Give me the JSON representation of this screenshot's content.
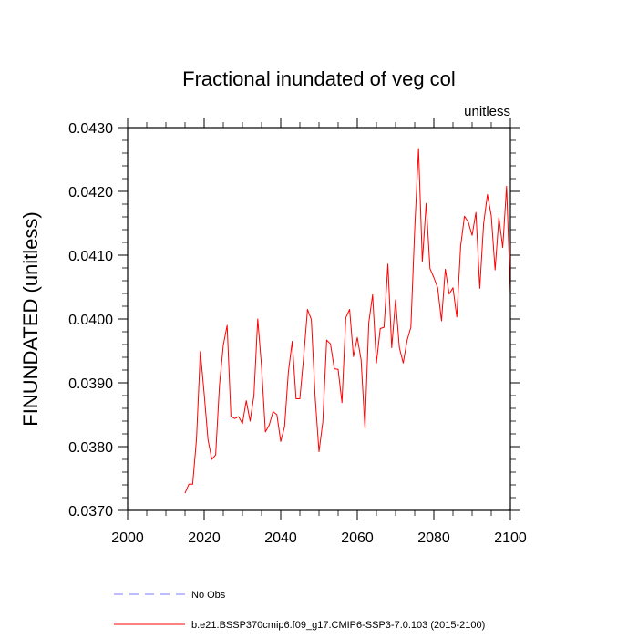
{
  "chart_data": {
    "type": "line",
    "title": "Fractional inundated of veg col",
    "units_label": "unitless",
    "ylabel": "FINUNDATED  (unitless)",
    "xlabel": "",
    "xlim": [
      2000,
      2100
    ],
    "ylim": [
      0.037,
      0.043
    ],
    "x_ticks": [
      2000,
      2020,
      2040,
      2060,
      2080,
      2100
    ],
    "x_tick_labels": [
      "2000",
      "2020",
      "2040",
      "2060",
      "2080",
      "2100"
    ],
    "y_ticks": [
      0.037,
      0.038,
      0.039,
      0.04,
      0.041,
      0.042,
      0.043
    ],
    "y_tick_labels": [
      "0.0370",
      "0.0380",
      "0.0390",
      "0.0400",
      "0.0410",
      "0.0420",
      "0.0430"
    ],
    "series": [
      {
        "name": "b.e21.BSSP370cmip6.f09_g17.CMIP6-SSP3-7.0.103 (2015-2100)",
        "color": "#ff0000",
        "dash": "solid",
        "x": [
          2015,
          2016,
          2017,
          2018,
          2019,
          2020,
          2021,
          2022,
          2023,
          2024,
          2025,
          2026,
          2027,
          2028,
          2029,
          2030,
          2031,
          2032,
          2033,
          2034,
          2035,
          2036,
          2037,
          2038,
          2039,
          2040,
          2041,
          2042,
          2043,
          2044,
          2045,
          2046,
          2047,
          2048,
          2049,
          2050,
          2051,
          2052,
          2053,
          2054,
          2055,
          2056,
          2057,
          2058,
          2059,
          2060,
          2061,
          2062,
          2063,
          2064,
          2065,
          2066,
          2067,
          2068,
          2069,
          2070,
          2071,
          2072,
          2073,
          2074,
          2075,
          2076,
          2077,
          2078,
          2079,
          2080,
          2081,
          2082,
          2083,
          2084,
          2085,
          2086,
          2087,
          2088,
          2089,
          2090,
          2091,
          2092,
          2093,
          2094,
          2095,
          2096,
          2097,
          2098,
          2099,
          2100
        ],
        "values": [
          0.03727,
          0.03741,
          0.03741,
          0.03812,
          0.03949,
          0.03883,
          0.03811,
          0.0378,
          0.03787,
          0.03896,
          0.03959,
          0.0399,
          0.03847,
          0.03844,
          0.03847,
          0.03836,
          0.03872,
          0.0384,
          0.0388,
          0.04,
          0.03925,
          0.03823,
          0.03834,
          0.03855,
          0.0385,
          0.03808,
          0.03831,
          0.03917,
          0.03965,
          0.03875,
          0.03875,
          0.03941,
          0.04015,
          0.03999,
          0.03877,
          0.03792,
          0.03839,
          0.03967,
          0.03961,
          0.03922,
          0.03921,
          0.03869,
          0.04002,
          0.04015,
          0.03941,
          0.03971,
          0.03936,
          0.03829,
          0.03994,
          0.04038,
          0.03931,
          0.03985,
          0.03987,
          0.04086,
          0.03955,
          0.0403,
          0.03955,
          0.03931,
          0.03966,
          0.03987,
          0.0414,
          0.04267,
          0.0409,
          0.04181,
          0.04079,
          0.04065,
          0.04049,
          0.03997,
          0.04078,
          0.04039,
          0.04049,
          0.04003,
          0.04114,
          0.04161,
          0.04152,
          0.04131,
          0.04167,
          0.04048,
          0.04149,
          0.04195,
          0.04162,
          0.04077,
          0.04159,
          0.04112,
          0.04208,
          0.04039
        ]
      },
      {
        "name": "No Obs",
        "color": "#7a7aff",
        "dash": "dashed",
        "x": [],
        "values": []
      }
    ],
    "legend_placement": "bottom-left"
  }
}
